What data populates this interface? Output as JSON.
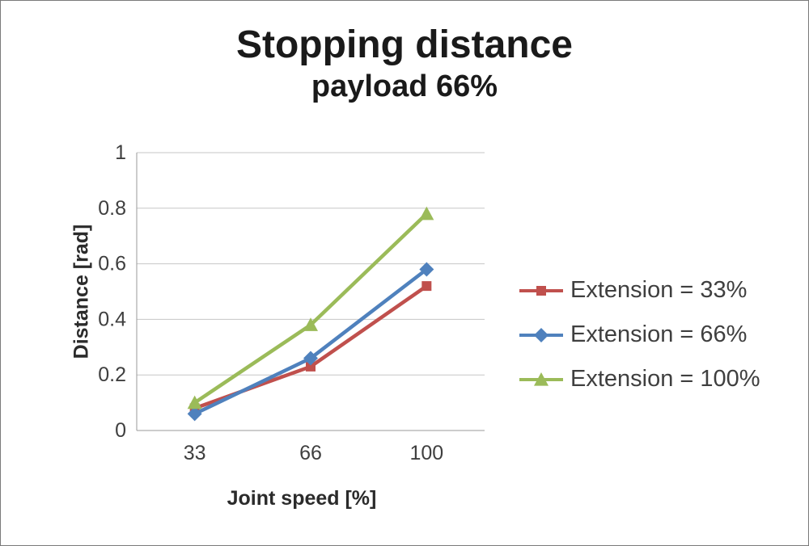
{
  "window": {
    "background": "#ffffff",
    "border_color": "#7a7a7a"
  },
  "chart_data": {
    "type": "line",
    "title": "Stopping distance",
    "subtitle": "payload 66%",
    "xlabel": "Joint speed [%]",
    "ylabel": "Distance [rad]",
    "categories": [
      "33",
      "66",
      "100"
    ],
    "series": [
      {
        "name": "Extension = 33%",
        "color": "#c0504d",
        "marker": "square",
        "values": [
          0.08,
          0.23,
          0.52
        ]
      },
      {
        "name": "Extension = 66%",
        "color": "#4f81bd",
        "marker": "diamond",
        "values": [
          0.06,
          0.26,
          0.58
        ]
      },
      {
        "name": "Extension = 100%",
        "color": "#9bbb59",
        "marker": "triangle",
        "values": [
          0.1,
          0.38,
          0.78
        ]
      }
    ],
    "ylim": [
      0,
      1
    ],
    "ytick_step": 0.2,
    "ytick_labels": [
      "0",
      "0.2",
      "0.4",
      "0.6",
      "0.8",
      "1"
    ],
    "grid": true,
    "legend_position": "right",
    "style": {
      "grid_color": "#c6c6c6",
      "axis_color": "#9a9a9a",
      "tick_color": "#3f3f3f",
      "title_color": "#1a1a1a",
      "legend_text_color": "#3f3f3f"
    }
  }
}
